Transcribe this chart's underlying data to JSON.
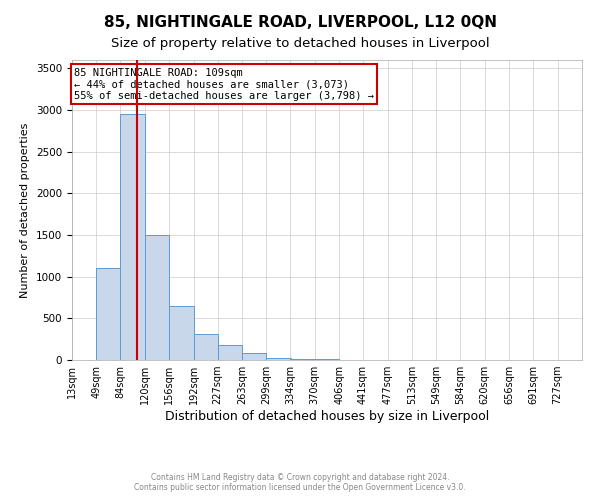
{
  "title": "85, NIGHTINGALE ROAD, LIVERPOOL, L12 0QN",
  "subtitle": "Size of property relative to detached houses in Liverpool",
  "xlabel": "Distribution of detached houses by size in Liverpool",
  "ylabel": "Number of detached properties",
  "property_size": 109,
  "annotation_text_line1": "85 NIGHTINGALE ROAD: 109sqm",
  "annotation_text_line2": "← 44% of detached houses are smaller (3,073)",
  "annotation_text_line3": "55% of semi-detached houses are larger (3,798) →",
  "bar_color": "#c8d8ea",
  "bar_edge_color": "#5b9bd5",
  "red_line_color": "#cc0000",
  "annotation_box_color": "#cc0000",
  "footer_line1": "Contains HM Land Registry data © Crown copyright and database right 2024.",
  "footer_line2": "Contains public sector information licensed under the Open Government Licence v3.0.",
  "bin_edges": [
    13,
    49,
    84,
    120,
    156,
    192,
    227,
    263,
    299,
    334,
    370,
    406,
    441,
    477,
    513,
    549,
    584,
    620,
    656,
    691,
    727
  ],
  "bar_heights": [
    0,
    1100,
    2950,
    1500,
    650,
    310,
    175,
    80,
    30,
    18,
    8,
    5,
    3,
    2,
    1,
    1,
    0,
    0,
    0,
    0
  ],
  "ylim": [
    0,
    3600
  ],
  "yticks": [
    0,
    500,
    1000,
    1500,
    2000,
    2500,
    3000,
    3500
  ],
  "grid_color": "#cccccc",
  "background_color": "#ffffff",
  "title_fontsize": 11,
  "subtitle_fontsize": 9.5,
  "tick_fontsize": 7,
  "ylabel_fontsize": 8,
  "xlabel_fontsize": 9,
  "annotation_fontsize": 7.5,
  "footer_fontsize": 5.5
}
